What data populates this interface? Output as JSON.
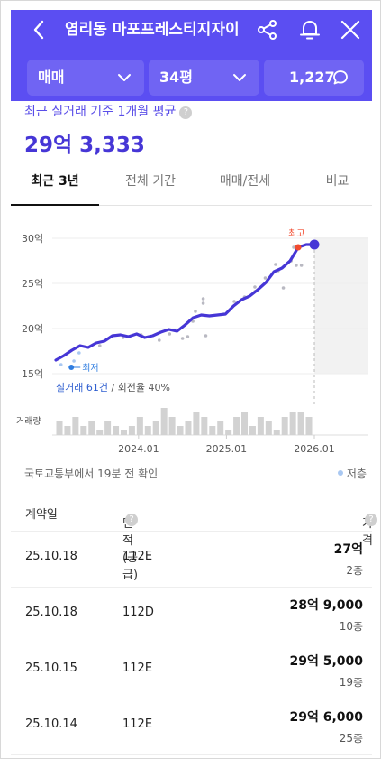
{
  "header": {
    "title": "염리동 마포프레스티지자이",
    "deal_type": "매매",
    "size": "34평",
    "comment_count": "1,227",
    "bg_color": "#5b4ef2"
  },
  "summary": {
    "caption": "최근 실거래 기준 1개월 평균",
    "price": "29억 3,333"
  },
  "tabs": [
    {
      "label": "최근 3년",
      "active": true
    },
    {
      "label": "전체 기간",
      "active": false
    },
    {
      "label": "매매/전세",
      "active": false
    },
    {
      "label": "비교",
      "active": false
    }
  ],
  "chart_data": {
    "type": "line",
    "y_unit": "억",
    "yticks": [
      "30억",
      "25억",
      "20억",
      "15억"
    ],
    "ylim": [
      15,
      30
    ],
    "xticks": [
      "2024.01",
      "2025.01",
      "2026.01"
    ],
    "high_label": "최고",
    "low_label": "최저",
    "trade_note": "실거래 61건",
    "turnover_note": "회전율 40%",
    "volume_label": "거래량",
    "line_color": "#4636d6",
    "high_color": "#f24b2f",
    "low_color": "#2f7de0",
    "series": [
      {
        "values": [
          16.5,
          17.0,
          17.6,
          18.1,
          17.9,
          18.4,
          18.6,
          19.2,
          19.3,
          19.1,
          19.4,
          19.0,
          19.2,
          19.6,
          19.9,
          19.7,
          20.4,
          21.2,
          21.5,
          21.4,
          21.5,
          21.6,
          22.5,
          23.2,
          23.6,
          24.3,
          25.1,
          26.3,
          26.7,
          27.5,
          29.0,
          29.3,
          29.3
        ]
      }
    ],
    "scatter": [
      {
        "t": 0.02,
        "v": 16.0
      },
      {
        "t": 0.07,
        "v": 16.4
      },
      {
        "t": 0.09,
        "v": 17.3
      },
      {
        "t": 0.17,
        "v": 18.1
      },
      {
        "t": 0.26,
        "v": 19.0
      },
      {
        "t": 0.33,
        "v": 19.3
      },
      {
        "t": 0.4,
        "v": 18.7
      },
      {
        "t": 0.44,
        "v": 19.4
      },
      {
        "t": 0.49,
        "v": 18.9
      },
      {
        "t": 0.51,
        "v": 19.1
      },
      {
        "t": 0.53,
        "v": 20.8
      },
      {
        "t": 0.54,
        "v": 21.9
      },
      {
        "t": 0.57,
        "v": 22.8
      },
      {
        "t": 0.57,
        "v": 23.3
      },
      {
        "t": 0.58,
        "v": 19.2
      },
      {
        "t": 0.65,
        "v": 21.6
      },
      {
        "t": 0.69,
        "v": 23.0
      },
      {
        "t": 0.73,
        "v": 23.5
      },
      {
        "t": 0.77,
        "v": 24.1
      },
      {
        "t": 0.77,
        "v": 24.6
      },
      {
        "t": 0.81,
        "v": 25.6
      },
      {
        "t": 0.85,
        "v": 27.1
      },
      {
        "t": 0.86,
        "v": 26.4
      },
      {
        "t": 0.88,
        "v": 24.5
      },
      {
        "t": 0.91,
        "v": 27.5
      },
      {
        "t": 0.92,
        "v": 29.0
      },
      {
        "t": 0.93,
        "v": 27.0
      },
      {
        "t": 0.95,
        "v": 27.0
      }
    ],
    "volume": [
      3,
      2,
      4,
      2,
      3,
      1,
      3,
      2,
      1,
      2,
      4,
      2,
      3,
      6,
      4,
      2,
      3,
      5,
      4,
      2,
      3,
      1,
      4,
      5,
      2,
      4,
      3,
      1,
      4,
      5,
      5,
      4
    ]
  },
  "source_note": "국토교통부에서 19분 전 확인",
  "low_legend": "저층",
  "table": {
    "headers": {
      "date": "계약일",
      "area": "면적(공급)",
      "price": "가격"
    },
    "rows": [
      {
        "date": "25.10.18",
        "area": "112E",
        "price": "27억",
        "floor": "2층"
      },
      {
        "date": "25.10.18",
        "area": "112D",
        "price": "28억 9,000",
        "floor": "10층"
      },
      {
        "date": "25.10.15",
        "area": "112E",
        "price": "29억 5,000",
        "floor": "19층"
      },
      {
        "date": "25.10.14",
        "area": "112E",
        "price": "29억 6,000",
        "floor": "25층"
      }
    ]
  }
}
